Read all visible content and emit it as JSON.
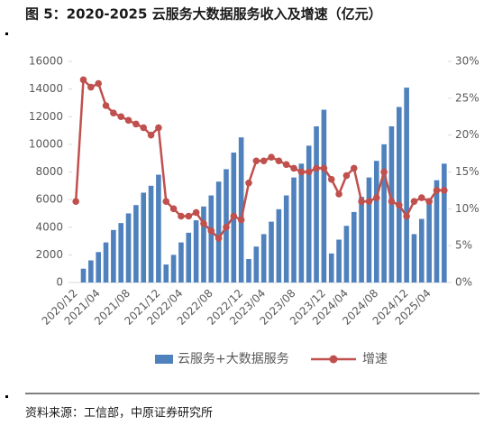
{
  "chart_data": {
    "type": "bar-line",
    "title": "图 5：2020-2025 云服务大数据服务收入及增速（亿元）",
    "source": "资料来源：工信部，中原证券研究所",
    "categories": [
      "2020/12",
      null,
      null,
      "2021/04",
      null,
      null,
      null,
      "2021/08",
      null,
      null,
      null,
      "2021/12",
      null,
      null,
      "2022/04",
      null,
      null,
      null,
      "2022/08",
      null,
      null,
      null,
      "2022/12",
      null,
      null,
      "2023/04",
      null,
      null,
      null,
      "2023/08",
      null,
      null,
      null,
      "2023/12",
      null,
      null,
      "2024/04",
      null,
      null,
      null,
      "2024/08",
      null,
      null,
      null,
      "2024/12",
      null,
      null,
      "2025/04",
      null,
      null
    ],
    "series": [
      {
        "name": "云服务+大数据服务",
        "color": "#4f81bd",
        "values": [
          null,
          1000,
          1600,
          2200,
          2900,
          3800,
          4300,
          5000,
          5600,
          6500,
          7000,
          7800,
          1300,
          2000,
          2900,
          3600,
          4500,
          5500,
          6300,
          7300,
          8200,
          9400,
          10500,
          1700,
          2600,
          3500,
          4400,
          5300,
          6300,
          7600,
          8600,
          9900,
          11300,
          12500,
          2100,
          3100,
          4100,
          5100,
          6200,
          7600,
          8800,
          10000,
          11300,
          12700,
          14100,
          3500,
          4600,
          6100,
          7400,
          8600
        ]
      },
      {
        "name": "增速",
        "color": "#c0504d",
        "axis": "y2",
        "values": [
          11,
          27.5,
          26.5,
          27,
          24,
          23,
          22.5,
          22,
          21.5,
          21,
          20,
          21,
          11,
          10,
          9,
          9,
          9.5,
          8,
          7,
          6,
          7.5,
          9,
          8.5,
          13.5,
          16.5,
          16.5,
          17,
          16.5,
          16,
          15.5,
          15,
          15,
          15.5,
          15.5,
          14,
          12,
          14.5,
          15.5,
          11,
          11,
          11.5,
          15,
          11,
          10.5,
          9,
          11,
          11.5,
          11,
          12.5,
          12.5
        ]
      }
    ],
    "ylim": [
      0,
      16000
    ],
    "yticks": [
      0,
      2000,
      4000,
      6000,
      8000,
      10000,
      12000,
      14000,
      16000
    ],
    "y2lim": [
      0,
      30
    ],
    "y2ticks": [
      {
        "value": 0,
        "label": "0%"
      },
      {
        "value": 5,
        "label": "5%"
      },
      {
        "value": 10,
        "label": "10%"
      },
      {
        "value": 15,
        "label": "15%"
      },
      {
        "value": 20,
        "label": "20%"
      },
      {
        "value": 25,
        "label": "25%"
      },
      {
        "value": 30,
        "label": "30%"
      }
    ],
    "legend": "bottom"
  }
}
